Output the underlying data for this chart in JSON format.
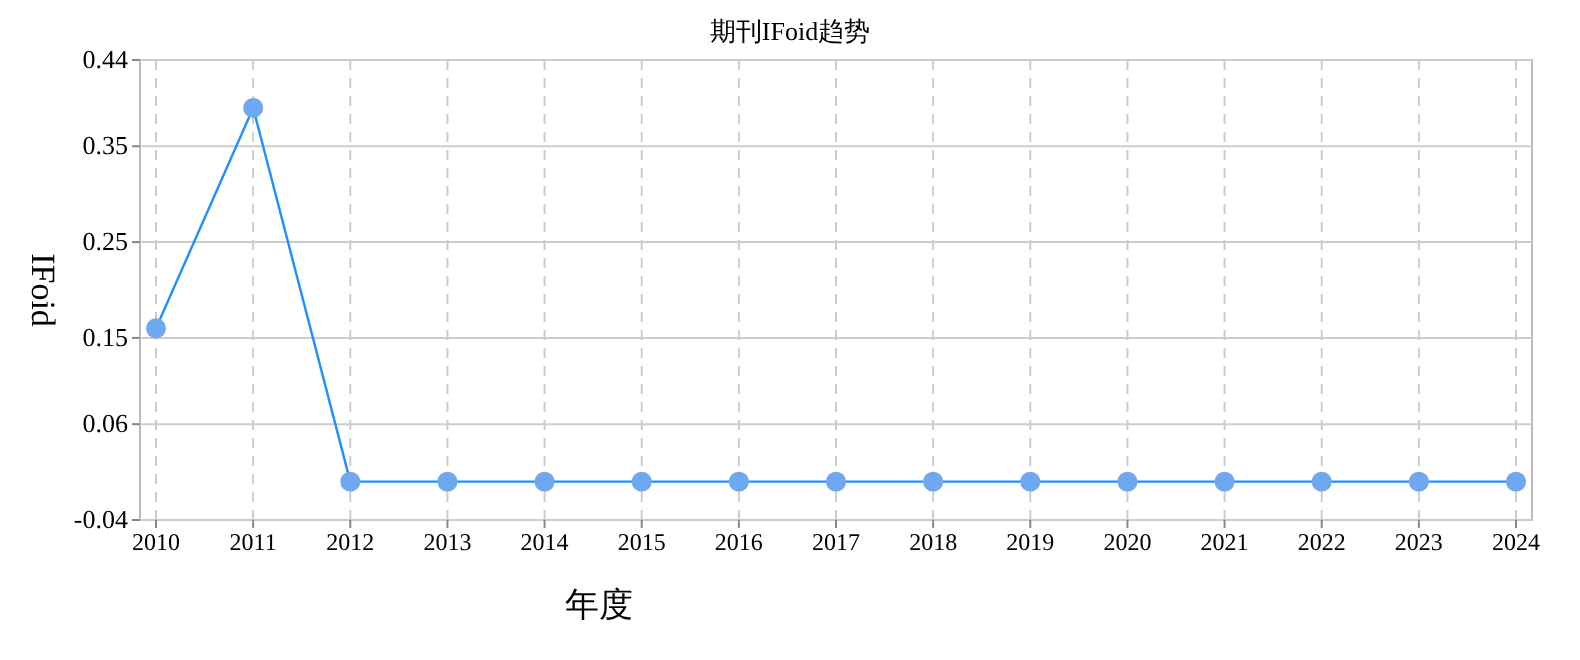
{
  "chart_data": {
    "type": "line",
    "title": "期刊IFoid趋势",
    "xlabel": "年度",
    "ylabel": "IFoid",
    "categories": [
      "2010",
      "2011",
      "2012",
      "2013",
      "2014",
      "2015",
      "2016",
      "2017",
      "2018",
      "2019",
      "2020",
      "2021",
      "2022",
      "2023",
      "2024"
    ],
    "series": [
      {
        "color": "#1e90ff",
        "values": [
          0.16,
          0.39,
          0,
          0,
          0,
          0,
          0,
          0,
          0,
          0,
          0,
          0,
          0,
          0,
          0
        ]
      }
    ],
    "ylim": [
      -0.04,
      0.44
    ],
    "yticks": [
      -0.04,
      0.06,
      0.15,
      0.25,
      0.35,
      0.44
    ],
    "grid": true,
    "marker": "circle"
  }
}
